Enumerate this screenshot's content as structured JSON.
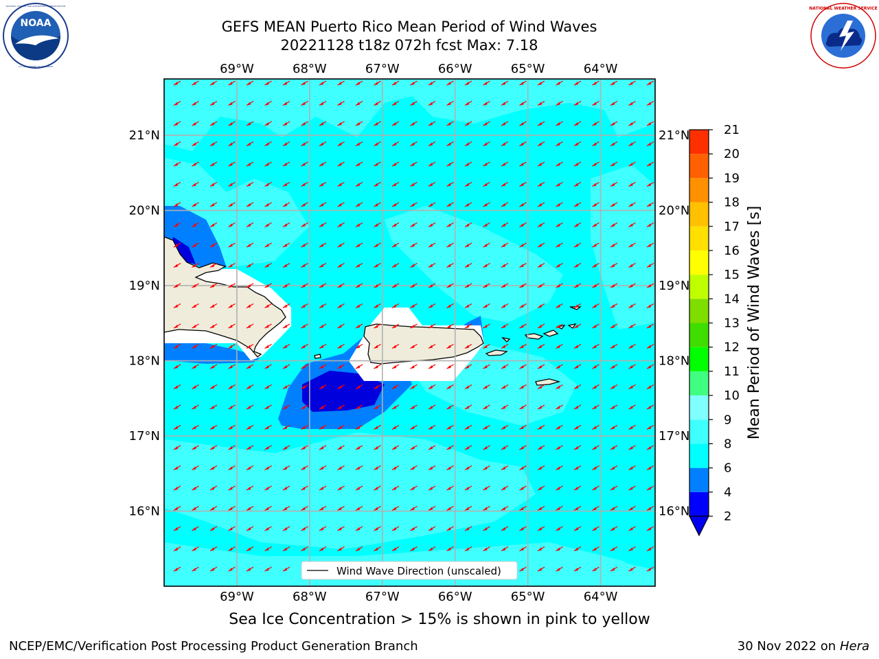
{
  "title": {
    "line1": "GEFS MEAN Puerto Rico Mean Period of Wind Waves",
    "line2": "20221128 t18z 072h fcst   Max: 7.18"
  },
  "logos": {
    "left_name": "NOAA",
    "left_ring_text": "NATIONAL OCEANIC AND ATMOSPHERIC ADMINISTRATION",
    "left_ring_text_bottom": "U.S. DEPARTMENT OF COMMERCE",
    "right_ring_text": "NATIONAL WEATHER SERVICE"
  },
  "map": {
    "lon_labels": [
      "69°W",
      "68°W",
      "67°W",
      "66°W",
      "65°W",
      "64°W"
    ],
    "lat_labels": [
      "21°N",
      "20°N",
      "19°N",
      "18°N",
      "17°N",
      "16°N"
    ],
    "lons": [
      -69,
      -68,
      -67,
      -66,
      -65,
      -64
    ],
    "lats": [
      21,
      20,
      19,
      18,
      17,
      16
    ],
    "extent": {
      "lon_min": -70.0,
      "lon_max": -63.25,
      "lat_min": 15.0,
      "lat_max": 21.75
    },
    "legend_label": "Wind Wave Direction (unscaled)",
    "arrow_color": "#ff0000",
    "land_color": "#efecdc",
    "ocean_base_color": "#00ffff"
  },
  "colorbar": {
    "label": "Mean Period of Wind Waves [s]",
    "ticks": [
      "2",
      "4",
      "6",
      "8",
      "9",
      "10",
      "11",
      "12",
      "13",
      "14",
      "15",
      "16",
      "17",
      "18",
      "19",
      "20",
      "21"
    ],
    "colors": [
      "#0000ff",
      "#0080ff",
      "#00ffff",
      "#40ffff",
      "#80ffff",
      "#40ff80",
      "#00ff00",
      "#40dd00",
      "#80dd00",
      "#c0ff00",
      "#ffff00",
      "#ffe000",
      "#ffc000",
      "#ff9000",
      "#ff6000",
      "#ff3000",
      "#ff0000"
    ],
    "under_color": "#0000ee"
  },
  "ice_note": "Sea Ice Concentration > 15% is shown in pink to yellow",
  "footer": {
    "left": "NCEP/EMC/Verification Post Processing Product Generation Branch",
    "right_date": "30 Nov 2022 on",
    "right_host": "Hera"
  }
}
